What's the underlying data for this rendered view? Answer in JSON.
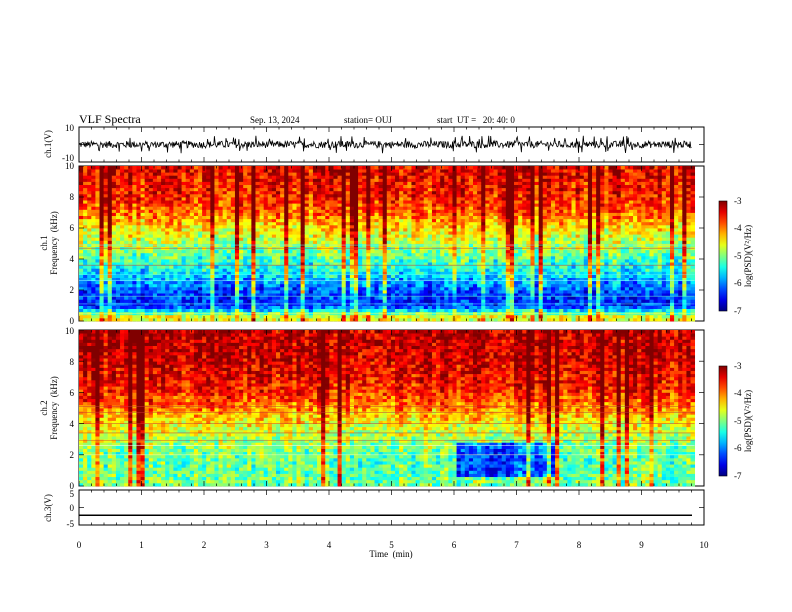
{
  "header": {
    "title": "VLF Spectra",
    "date": "Sep. 13, 2024",
    "station": "station= OUJ",
    "start_ut": "start  UT =   20: 40: 0"
  },
  "chart_data": [
    {
      "type": "line",
      "name": "ch1-waveform",
      "ylabel": "ch.1(V)",
      "ylim": [
        -10,
        10
      ],
      "ytick_labels": [
        "10",
        "-10"
      ],
      "xlim": [
        0,
        10
      ],
      "description_values": {
        "baseline": 0,
        "typical_amplitude": 2,
        "spike_amplitude": 5
      }
    },
    {
      "type": "heatmap",
      "name": "ch1-spectrogram",
      "ylabel_line1": "ch.1",
      "ylabel_line2": "Frequency  (kHz)",
      "ylim": [
        0,
        10
      ],
      "ytick_labels": [
        "0",
        "2",
        "4",
        "6",
        "8",
        "10"
      ],
      "xlim": [
        0,
        9.85
      ],
      "colorbar": {
        "label": "log(PSD)(V²/Hz)",
        "range": [
          -7,
          -3
        ],
        "tick_labels": [
          "-3",
          "-4",
          "-5",
          "-6",
          "-7"
        ]
      },
      "profile": [
        {
          "freq_khz": 0.3,
          "log_psd": -4.6
        },
        {
          "freq_khz": 1.0,
          "log_psd": -6.4
        },
        {
          "freq_khz": 2.0,
          "log_psd": -6.2
        },
        {
          "freq_khz": 3.0,
          "log_psd": -5.6
        },
        {
          "freq_khz": 4.0,
          "log_psd": -5.2
        },
        {
          "freq_khz": 5.0,
          "log_psd": -4.8
        },
        {
          "freq_khz": 6.0,
          "log_psd": -4.4
        },
        {
          "freq_khz": 7.0,
          "log_psd": -3.9
        },
        {
          "freq_khz": 8.0,
          "log_psd": -3.6
        },
        {
          "freq_khz": 10.0,
          "log_psd": -3.4
        }
      ]
    },
    {
      "type": "heatmap",
      "name": "ch2-spectrogram",
      "ylabel_line1": "ch.2",
      "ylabel_line2": "Frequency  (kHz)",
      "ylim": [
        0,
        10
      ],
      "ytick_labels": [
        "0",
        "2",
        "4",
        "6",
        "8",
        "10"
      ],
      "xlim": [
        0,
        9.85
      ],
      "colorbar": {
        "label": "log(PSD)(V²/Hz)",
        "range": [
          -7,
          -3
        ],
        "tick_labels": [
          "-3",
          "-4",
          "-5",
          "-6",
          "-7"
        ]
      },
      "profile": [
        {
          "freq_khz": 0.3,
          "log_psd": -5.0
        },
        {
          "freq_khz": 1.0,
          "log_psd": -5.1
        },
        {
          "freq_khz": 2.0,
          "log_psd": -5.1
        },
        {
          "freq_khz": 3.0,
          "log_psd": -4.8
        },
        {
          "freq_khz": 4.0,
          "log_psd": -4.5
        },
        {
          "freq_khz": 5.0,
          "log_psd": -4.0
        },
        {
          "freq_khz": 6.0,
          "log_psd": -3.6
        },
        {
          "freq_khz": 8.0,
          "log_psd": -3.3
        },
        {
          "freq_khz": 10.0,
          "log_psd": -3.2
        }
      ]
    },
    {
      "type": "line",
      "name": "ch3-waveform",
      "ylabel": "ch.3(V)",
      "ylim": [
        -5,
        5
      ],
      "ytick_labels": [
        "5",
        "0",
        "-5"
      ],
      "xlim": [
        0,
        10
      ],
      "xlabel": "Time  (min)",
      "xtick_labels": [
        "0",
        "1",
        "2",
        "3",
        "4",
        "5",
        "6",
        "7",
        "8",
        "9",
        "10"
      ],
      "constant_value": -2.2
    }
  ]
}
